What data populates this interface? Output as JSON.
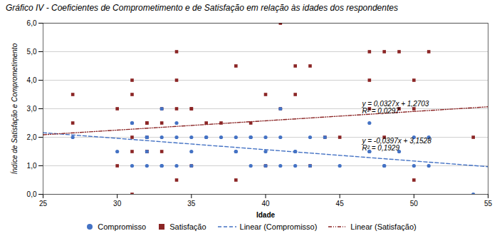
{
  "chart_data": {
    "type": "scatter",
    "title": "Gráfico IV - Coeficientes de Comprometimento e de Satisfação em relação às idades dos respondentes",
    "xlabel": "Idade",
    "ylabel": "Índice de Satisfação e Comprometimento",
    "xlim": [
      25,
      55
    ],
    "ylim": [
      0.0,
      6.0
    ],
    "xticks": [
      25,
      30,
      35,
      40,
      45,
      50,
      55
    ],
    "yticks": [
      {
        "value": 0.0,
        "label": "0,0"
      },
      {
        "value": 1.0,
        "label": "1,0"
      },
      {
        "value": 2.0,
        "label": "2,0"
      },
      {
        "value": 3.0,
        "label": "3,0"
      },
      {
        "value": 4.0,
        "label": "4,0"
      },
      {
        "value": 5.0,
        "label": "5,0"
      },
      {
        "value": 6.0,
        "label": "6,0"
      }
    ],
    "grid": "y",
    "legend": "bottom",
    "series": [
      {
        "name": "Compromisso",
        "type": "scatter",
        "marker": "circle",
        "color": "#4472C4",
        "x": [
          27,
          30,
          31,
          31,
          31,
          32,
          32,
          32,
          32,
          32,
          33,
          33,
          33,
          33,
          34,
          34,
          34,
          35,
          35,
          35,
          36,
          36,
          37,
          38,
          38,
          38,
          39,
          39,
          39,
          40,
          40,
          40,
          41,
          41,
          41,
          42,
          42,
          42,
          43,
          43,
          44,
          45,
          47,
          47,
          47,
          48,
          48,
          49,
          50,
          50,
          51,
          51,
          54
        ],
        "values": [
          2.0,
          1.5,
          2.5,
          2.5,
          1.0,
          2.0,
          2.0,
          2.0,
          1.5,
          1.0,
          3.0,
          2.0,
          1.0,
          1.0,
          2.5,
          2.0,
          1.0,
          2.0,
          1.5,
          1.0,
          2.0,
          2.0,
          2.0,
          2.0,
          1.5,
          1.5,
          2.0,
          2.0,
          1.0,
          2.0,
          1.5,
          1.0,
          3.0,
          2.0,
          1.0,
          1.5,
          1.5,
          1.0,
          2.0,
          1.0,
          2.0,
          1.0,
          2.5,
          1.5,
          1.5,
          1.0,
          1.0,
          1.5,
          2.0,
          1.0,
          2.0,
          1.0,
          0.0
        ]
      },
      {
        "name": "Satisfação",
        "type": "scatter",
        "marker": "square",
        "color": "#8B2525",
        "x": [
          27,
          27,
          30,
          30,
          31,
          31,
          31,
          31,
          31,
          32,
          32,
          32,
          32,
          32,
          33,
          33,
          33,
          34,
          34,
          34,
          34,
          35,
          35,
          35,
          36,
          37,
          38,
          38,
          39,
          40,
          40,
          41,
          41,
          42,
          42,
          43,
          43,
          44,
          45,
          47,
          47,
          47,
          48,
          48,
          49,
          49,
          50,
          50,
          50,
          51,
          54
        ],
        "values": [
          3.5,
          2.5,
          3.0,
          1.0,
          4.0,
          3.5,
          2.0,
          1.5,
          0.0,
          2.5,
          2.5,
          2.0,
          1.5,
          1.5,
          3.0,
          2.5,
          1.5,
          5.0,
          4.0,
          3.0,
          0.5,
          3.0,
          3.0,
          1.0,
          2.5,
          2.5,
          4.5,
          0.5,
          2.5,
          3.5,
          1.0,
          6.0,
          3.0,
          4.5,
          3.5,
          4.5,
          1.0,
          2.0,
          2.0,
          5.0,
          4.0,
          3.0,
          5.0,
          2.0,
          5.0,
          3.0,
          4.0,
          3.0,
          0.5,
          5.0,
          2.0
        ]
      },
      {
        "name": "Linear (Compromisso)",
        "type": "line",
        "line_style": "dashed",
        "color": "#4472C4",
        "x": [
          25,
          55
        ],
        "values": [
          2.1603,
          0.9693
        ]
      },
      {
        "name": "Linear (Satisfação)",
        "type": "line",
        "line_style": "dashdotdot",
        "color": "#8B2525",
        "x": [
          25,
          55
        ],
        "values": [
          2.0878,
          3.0688
        ]
      }
    ],
    "annotations": [
      {
        "text": "y = 0,0327x + 1,2703\nR² = 0,0297",
        "x": 46.5,
        "y": 2.85
      },
      {
        "text": "y = -0,0397x + 3,1528\nR² = 0,1929",
        "x": 46.5,
        "y": 1.55
      }
    ]
  }
}
